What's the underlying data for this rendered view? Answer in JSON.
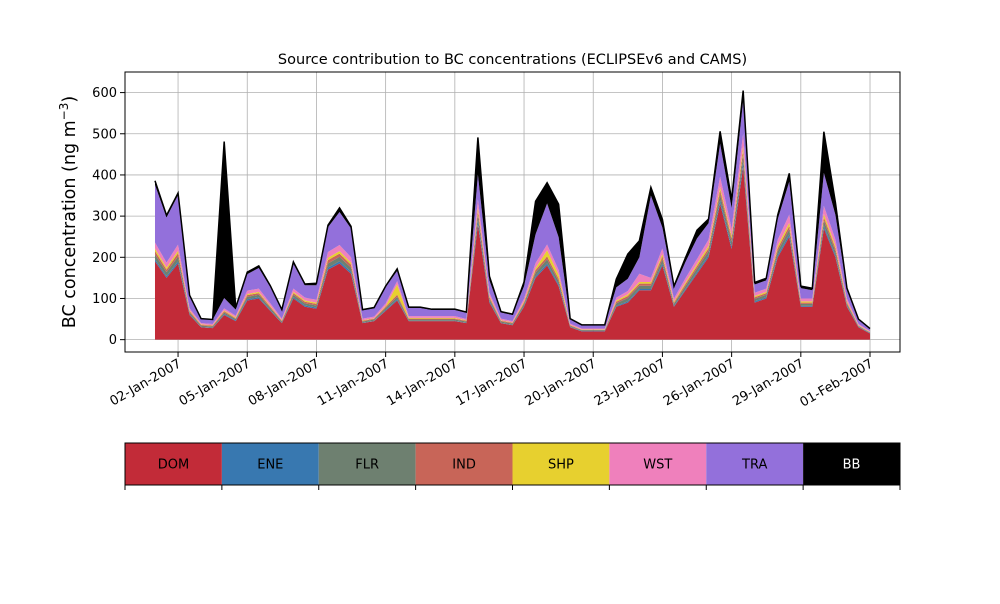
{
  "chart_data": {
    "type": "area",
    "stacked": true,
    "title": "Source contribution to BC concentrations (ECLIPSEv6 and CAMS)",
    "ylabel_main": "BC concentration (ng m",
    "ylabel_sup": "−3",
    "ylabel_close": ")",
    "xlabel": "",
    "ylim": [
      -30,
      650
    ],
    "yticks": [
      0,
      100,
      200,
      300,
      400,
      500,
      600
    ],
    "ytick_labels": [
      "0",
      "100",
      "200",
      "300",
      "400",
      "500",
      "600"
    ],
    "xlim": [
      -1.3,
      32.3
    ],
    "xticks": [
      1,
      4,
      7,
      10,
      13,
      16,
      19,
      22,
      25,
      28,
      31
    ],
    "xtick_labels": [
      "02-Jan-2007",
      "05-Jan-2007",
      "08-Jan-2007",
      "11-Jan-2007",
      "14-Jan-2007",
      "17-Jan-2007",
      "20-Jan-2007",
      "23-Jan-2007",
      "26-Jan-2007",
      "29-Jan-2007",
      "01-Feb-2007"
    ],
    "grid": true,
    "x": [
      0,
      0.5,
      1,
      1.5,
      2,
      2.5,
      3,
      3.5,
      4,
      4.5,
      5,
      5.5,
      6,
      6.5,
      7,
      7.5,
      8,
      8.5,
      9,
      9.5,
      10,
      10.5,
      11,
      11.5,
      12,
      12.5,
      13,
      13.5,
      14,
      14.5,
      15,
      15.5,
      16,
      16.5,
      17,
      17.5,
      18,
      18.5,
      19,
      19.5,
      20,
      20.5,
      21,
      21.5,
      22,
      22.5,
      23,
      23.5,
      24,
      24.5,
      25,
      25.5,
      26,
      26.5,
      27,
      27.5,
      28,
      28.5,
      29,
      29.5,
      30,
      30.5,
      31
    ],
    "series": [
      {
        "name": "DOM",
        "color": "#c22b38",
        "values": [
          190,
          150,
          185,
          60,
          30,
          28,
          60,
          45,
          95,
          100,
          70,
          40,
          100,
          80,
          75,
          170,
          185,
          160,
          40,
          45,
          70,
          95,
          45,
          45,
          45,
          45,
          45,
          40,
          280,
          90,
          40,
          35,
          80,
          150,
          180,
          130,
          30,
          20,
          20,
          20,
          80,
          90,
          120,
          120,
          180,
          80,
          120,
          160,
          200,
          330,
          220,
          420,
          90,
          100,
          200,
          250,
          80,
          80,
          270,
          200,
          80,
          30,
          15
        ]
      },
      {
        "name": "ENE",
        "color": "#3878b0",
        "values": [
          5,
          4,
          5,
          2,
          1,
          1,
          2,
          2,
          3,
          3,
          2,
          1,
          3,
          3,
          3,
          5,
          5,
          5,
          1,
          1,
          2,
          3,
          1,
          1,
          1,
          1,
          1,
          1,
          8,
          3,
          1,
          1,
          2,
          4,
          5,
          4,
          1,
          1,
          1,
          1,
          2,
          3,
          3,
          3,
          5,
          2,
          3,
          4,
          5,
          8,
          6,
          10,
          3,
          3,
          5,
          6,
          2,
          2,
          6,
          5,
          2,
          1,
          1
        ]
      },
      {
        "name": "FLR",
        "color": "#6e8070",
        "values": [
          12,
          10,
          12,
          4,
          3,
          3,
          4,
          3,
          6,
          6,
          5,
          3,
          6,
          5,
          5,
          10,
          11,
          10,
          3,
          3,
          5,
          6,
          3,
          3,
          3,
          3,
          3,
          3,
          15,
          6,
          3,
          3,
          5,
          9,
          10,
          8,
          2,
          2,
          2,
          2,
          6,
          8,
          8,
          8,
          10,
          5,
          7,
          9,
          10,
          15,
          12,
          18,
          6,
          6,
          10,
          12,
          5,
          5,
          13,
          10,
          5,
          2,
          1
        ]
      },
      {
        "name": "IND",
        "color": "#c86558",
        "values": [
          8,
          6,
          8,
          3,
          2,
          2,
          3,
          2,
          4,
          4,
          3,
          2,
          4,
          4,
          4,
          8,
          8,
          7,
          2,
          2,
          3,
          5,
          2,
          2,
          2,
          2,
          2,
          2,
          10,
          4,
          2,
          2,
          3,
          6,
          7,
          6,
          2,
          1,
          1,
          1,
          4,
          5,
          5,
          5,
          7,
          3,
          5,
          6,
          7,
          10,
          8,
          12,
          4,
          4,
          7,
          8,
          3,
          3,
          8,
          7,
          3,
          1,
          1
        ]
      },
      {
        "name": "SHP",
        "color": "#e7d02f",
        "values": [
          6,
          5,
          6,
          2,
          1,
          1,
          2,
          2,
          3,
          3,
          2,
          1,
          3,
          3,
          3,
          6,
          6,
          5,
          1,
          1,
          2,
          25,
          2,
          2,
          2,
          2,
          2,
          1,
          8,
          3,
          1,
          1,
          3,
          5,
          15,
          10,
          1,
          1,
          1,
          1,
          3,
          4,
          4,
          4,
          6,
          3,
          4,
          5,
          6,
          8,
          6,
          10,
          3,
          3,
          6,
          8,
          3,
          3,
          8,
          6,
          3,
          1,
          1
        ]
      },
      {
        "name": "WST",
        "color": "#ef80bc",
        "values": [
          15,
          12,
          15,
          5,
          3,
          3,
          5,
          4,
          8,
          8,
          6,
          4,
          8,
          7,
          7,
          14,
          15,
          13,
          4,
          4,
          6,
          8,
          4,
          4,
          4,
          4,
          4,
          3,
          20,
          8,
          4,
          3,
          7,
          12,
          14,
          11,
          3,
          2,
          2,
          2,
          7,
          8,
          20,
          10,
          14,
          7,
          10,
          12,
          15,
          25,
          18,
          30,
          8,
          8,
          15,
          20,
          7,
          7,
          20,
          15,
          7,
          3,
          2
        ]
      },
      {
        "name": "TRA",
        "color": "#9370db",
        "values": [
          140,
          110,
          120,
          30,
          10,
          10,
          25,
          15,
          40,
          50,
          40,
          20,
          60,
          30,
          35,
          60,
          80,
          70,
          20,
          20,
          40,
          25,
          20,
          20,
          15,
          15,
          15,
          15,
          60,
          30,
          15,
          15,
          30,
          70,
          100,
          80,
          10,
          8,
          8,
          8,
          25,
          30,
          40,
          200,
          50,
          25,
          40,
          50,
          40,
          80,
          50,
          80,
          20,
          20,
          50,
          80,
          25,
          20,
          80,
          60,
          20,
          10,
          5
        ]
      },
      {
        "name": "BB",
        "color": "#000000",
        "values": [
          10,
          5,
          5,
          2,
          1,
          1,
          380,
          5,
          5,
          5,
          3,
          2,
          5,
          3,
          5,
          5,
          10,
          5,
          2,
          2,
          2,
          5,
          2,
          2,
          2,
          2,
          2,
          2,
          90,
          10,
          2,
          2,
          10,
          80,
          50,
          80,
          2,
          1,
          1,
          1,
          20,
          60,
          40,
          20,
          20,
          5,
          10,
          20,
          10,
          30,
          20,
          25,
          5,
          5,
          10,
          20,
          5,
          5,
          100,
          30,
          5,
          2,
          1
        ]
      }
    ],
    "legend": {
      "placement": "colorbar-below",
      "entries": [
        {
          "label": "DOM",
          "color": "#c22b38",
          "text_color": "#000000"
        },
        {
          "label": "ENE",
          "color": "#3878b0",
          "text_color": "#000000"
        },
        {
          "label": "FLR",
          "color": "#6e8070",
          "text_color": "#000000"
        },
        {
          "label": "IND",
          "color": "#c86558",
          "text_color": "#000000"
        },
        {
          "label": "SHP",
          "color": "#e7d02f",
          "text_color": "#000000"
        },
        {
          "label": "WST",
          "color": "#ef80bc",
          "text_color": "#000000"
        },
        {
          "label": "TRA",
          "color": "#9370db",
          "text_color": "#000000"
        },
        {
          "label": "BB",
          "color": "#000000",
          "text_color": "#ffffff"
        }
      ]
    },
    "total_line_color": "#000000",
    "grid_color": "#b0b0b0"
  }
}
